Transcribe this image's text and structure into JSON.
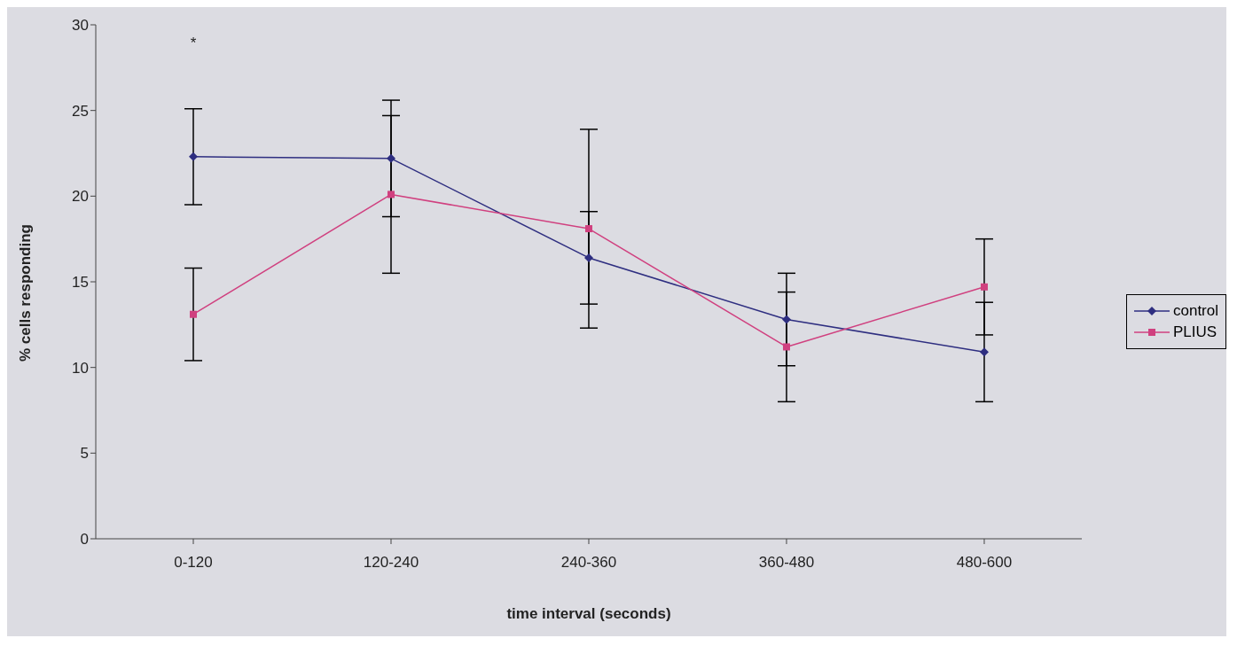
{
  "chart_data": {
    "type": "line",
    "xlabel": "time interval (seconds)",
    "ylabel": "% cells responding",
    "categories": [
      "0-120",
      "120-240",
      "240-360",
      "360-480",
      "480-600"
    ],
    "series": [
      {
        "name": "control",
        "color": "#2e2e80",
        "marker": "diamond",
        "values": [
          22.3,
          22.2,
          16.4,
          12.8,
          10.9
        ],
        "errors": [
          2.8,
          3.4,
          2.7,
          2.7,
          2.9
        ]
      },
      {
        "name": "PLIUS",
        "color": "#d0407f",
        "marker": "square",
        "values": [
          13.1,
          20.1,
          18.1,
          11.2,
          14.7
        ],
        "errors": [
          2.7,
          4.6,
          5.8,
          3.2,
          2.8
        ]
      }
    ],
    "ylim": [
      0,
      30
    ],
    "yticks": [
      0,
      5,
      10,
      15,
      20,
      25,
      30
    ],
    "grid": false,
    "legend": "right",
    "annotations": [
      "*"
    ]
  }
}
